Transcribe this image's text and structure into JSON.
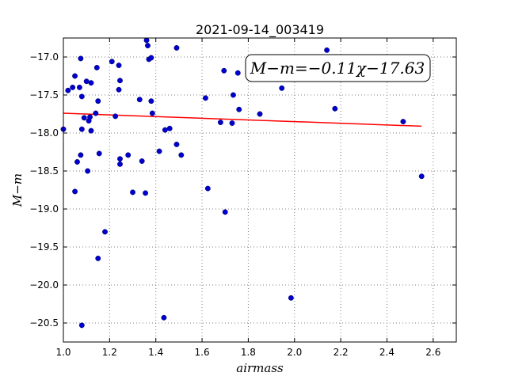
{
  "chart_data": {
    "type": "scatter",
    "title": "2021-09-14_003419",
    "xlabel": "airmass",
    "ylabel": "M−m",
    "xlim": [
      1.0,
      2.7
    ],
    "ylim": [
      -20.75,
      -16.75
    ],
    "x_ticks": [
      1.0,
      1.2,
      1.4,
      1.6,
      1.8,
      2.0,
      2.2,
      2.4,
      2.6
    ],
    "x_tick_labels": [
      "1.0",
      "1.2",
      "1.4",
      "1.6",
      "1.8",
      "2.0",
      "2.2",
      "2.4",
      "2.6"
    ],
    "y_ticks": [
      -17.0,
      -17.5,
      -18.0,
      -18.5,
      -19.0,
      -19.5,
      -20.0,
      -20.5
    ],
    "y_tick_labels": [
      "−17.0",
      "−17.5",
      "−18.0",
      "−18.5",
      "−19.0",
      "−19.5",
      "−20.0",
      "−20.5"
    ],
    "grid": true,
    "annotation": "M−m=−0.11χ−17.63",
    "colors": {
      "points": "#0000cc",
      "fit": "#ff0000",
      "grid": "#7f7f7f"
    },
    "fit_line": {
      "slope": -0.11,
      "intercept": -17.63,
      "x_range": [
        1.0,
        2.55
      ]
    },
    "points": [
      {
        "x": 1.0,
        "y": -17.95
      },
      {
        "x": 1.02,
        "y": -17.44
      },
      {
        "x": 1.04,
        "y": -17.4
      },
      {
        "x": 1.05,
        "y": -17.25
      },
      {
        "x": 1.05,
        "y": -18.77
      },
      {
        "x": 1.06,
        "y": -18.38
      },
      {
        "x": 1.07,
        "y": -17.4
      },
      {
        "x": 1.075,
        "y": -17.02
      },
      {
        "x": 1.075,
        "y": -18.29
      },
      {
        "x": 1.08,
        "y": -17.52
      },
      {
        "x": 1.08,
        "y": -17.95
      },
      {
        "x": 1.08,
        "y": -20.53
      },
      {
        "x": 1.09,
        "y": -17.8
      },
      {
        "x": 1.1,
        "y": -17.32
      },
      {
        "x": 1.105,
        "y": -18.5
      },
      {
        "x": 1.11,
        "y": -17.84
      },
      {
        "x": 1.115,
        "y": -17.79
      },
      {
        "x": 1.12,
        "y": -17.34
      },
      {
        "x": 1.12,
        "y": -17.97
      },
      {
        "x": 1.14,
        "y": -17.74
      },
      {
        "x": 1.145,
        "y": -17.14
      },
      {
        "x": 1.15,
        "y": -17.58
      },
      {
        "x": 1.15,
        "y": -19.65
      },
      {
        "x": 1.155,
        "y": -18.27
      },
      {
        "x": 1.18,
        "y": -19.3
      },
      {
        "x": 1.21,
        "y": -17.06
      },
      {
        "x": 1.225,
        "y": -17.78
      },
      {
        "x": 1.24,
        "y": -17.11
      },
      {
        "x": 1.24,
        "y": -17.43
      },
      {
        "x": 1.245,
        "y": -17.31
      },
      {
        "x": 1.245,
        "y": -18.34
      },
      {
        "x": 1.245,
        "y": -18.41
      },
      {
        "x": 1.28,
        "y": -18.29
      },
      {
        "x": 1.3,
        "y": -18.78
      },
      {
        "x": 1.33,
        "y": -17.56
      },
      {
        "x": 1.34,
        "y": -18.37
      },
      {
        "x": 1.355,
        "y": -18.79
      },
      {
        "x": 1.36,
        "y": -16.78
      },
      {
        "x": 1.365,
        "y": -16.85
      },
      {
        "x": 1.37,
        "y": -17.03
      },
      {
        "x": 1.38,
        "y": -17.01
      },
      {
        "x": 1.38,
        "y": -17.58
      },
      {
        "x": 1.385,
        "y": -17.74
      },
      {
        "x": 1.415,
        "y": -18.24
      },
      {
        "x": 1.435,
        "y": -20.43
      },
      {
        "x": 1.44,
        "y": -17.96
      },
      {
        "x": 1.46,
        "y": -17.94
      },
      {
        "x": 1.49,
        "y": -16.88
      },
      {
        "x": 1.49,
        "y": -18.15
      },
      {
        "x": 1.51,
        "y": -18.29
      },
      {
        "x": 1.615,
        "y": -17.54
      },
      {
        "x": 1.625,
        "y": -18.73
      },
      {
        "x": 1.68,
        "y": -17.86
      },
      {
        "x": 1.695,
        "y": -17.18
      },
      {
        "x": 1.7,
        "y": -19.04
      },
      {
        "x": 1.73,
        "y": -17.87
      },
      {
        "x": 1.735,
        "y": -17.5
      },
      {
        "x": 1.755,
        "y": -17.21
      },
      {
        "x": 1.76,
        "y": -17.69
      },
      {
        "x": 1.85,
        "y": -17.75
      },
      {
        "x": 1.945,
        "y": -17.41
      },
      {
        "x": 1.985,
        "y": -20.17
      },
      {
        "x": 2.14,
        "y": -16.91
      },
      {
        "x": 2.175,
        "y": -17.68
      },
      {
        "x": 2.47,
        "y": -17.85
      },
      {
        "x": 2.55,
        "y": -18.57
      }
    ]
  }
}
